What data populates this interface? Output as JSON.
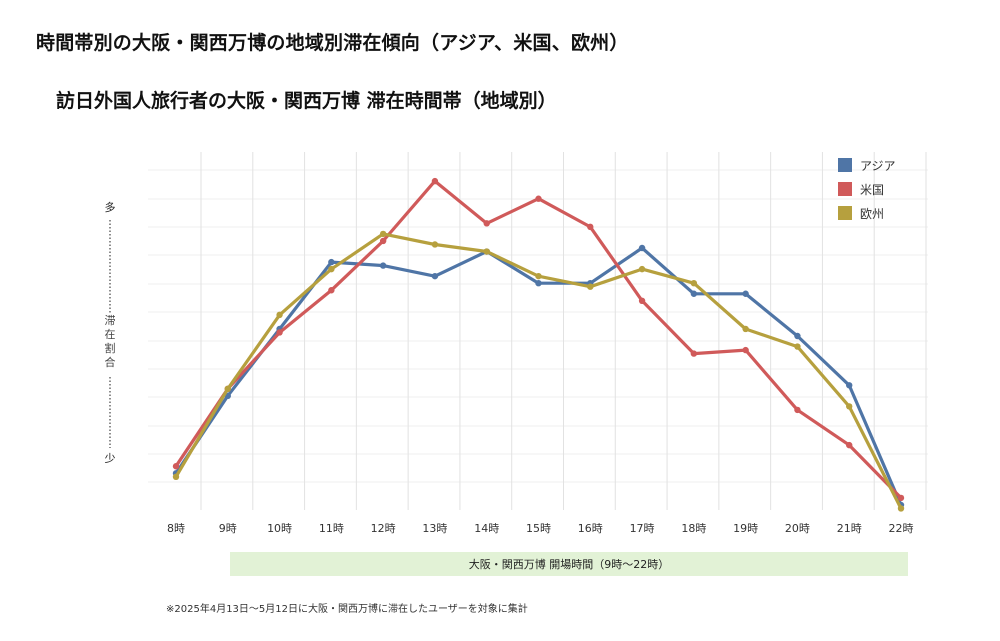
{
  "page": {
    "heading": "時間帯別の大阪・関西万博の地域別滞在傾向（アジア、米国、欧州）",
    "footnote": "※2025年4月13日〜5月12日に大阪・関西万博に滞在したユーザーを対象に集計"
  },
  "chart_data": {
    "type": "line",
    "title": "訪日外国人旅行者の大阪・関西万博 滞在時間帯（地域別）",
    "ylabel": "滞在割合",
    "y_top_label": "多",
    "y_bottom_label": "少",
    "y_scale": "relative (no numeric ticks shown)",
    "ylim": [
      0,
      100
    ],
    "categories": [
      "8時",
      "9時",
      "10時",
      "11時",
      "12時",
      "13時",
      "14時",
      "15時",
      "16時",
      "17時",
      "18時",
      "19時",
      "20時",
      "21時",
      "22時"
    ],
    "series": [
      {
        "name": "アジア",
        "color": "#4f75a6",
        "values": [
          11,
          33,
          52,
          71,
          70,
          67,
          74,
          65,
          65,
          75,
          62,
          62,
          50,
          36,
          2
        ]
      },
      {
        "name": "米国",
        "color": "#d05a5a",
        "values": [
          13,
          35,
          51,
          63,
          77,
          94,
          82,
          89,
          81,
          60,
          45,
          46,
          29,
          19,
          4
        ]
      },
      {
        "name": "欧州",
        "color": "#b6a03e",
        "values": [
          10,
          35,
          56,
          69,
          79,
          76,
          74,
          67,
          64,
          69,
          65,
          52,
          47,
          30,
          1
        ]
      }
    ],
    "legend_position": "top-right",
    "grid": true,
    "annotation": {
      "label": "大阪・関西万博 開場時間（9時〜22時）",
      "color": "#e2f2d6"
    }
  }
}
